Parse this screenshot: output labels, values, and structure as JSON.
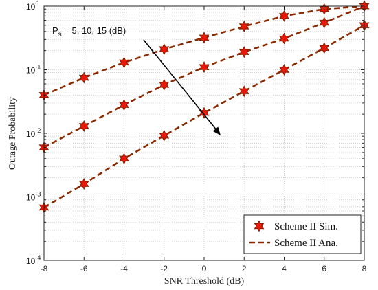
{
  "chart_data": {
    "type": "line",
    "title": "",
    "xlabel": "SNR Threshold (dB)",
    "ylabel": "Outage Probability",
    "xlim": [
      -8,
      8
    ],
    "ylim": [
      0.0001,
      1
    ],
    "yscale": "log",
    "grid": true,
    "legend_position": "bottom-right",
    "x": [
      -8,
      -6,
      -4,
      -2,
      0,
      2,
      4,
      6,
      8
    ],
    "x_ticks": [
      "-8",
      "-6",
      "-4",
      "-2",
      "0",
      "2",
      "4",
      "6",
      "8"
    ],
    "y_ticks": [
      {
        "value": 1,
        "label": "10",
        "exp": "0"
      },
      {
        "value": 0.1,
        "label": "10",
        "exp": "-1"
      },
      {
        "value": 0.01,
        "label": "10",
        "exp": "-2"
      },
      {
        "value": 0.001,
        "label": "10",
        "exp": "-3"
      },
      {
        "value": 0.0001,
        "label": "10",
        "exp": "-4"
      }
    ],
    "legend": [
      {
        "label": "Scheme II Sim.",
        "style": "marker"
      },
      {
        "label": "Scheme II Ana.",
        "style": "dashed"
      }
    ],
    "annotation": {
      "prefix": "P",
      "subscript": "s",
      "text": " = 5, 10, 15 (dB)"
    },
    "curves": [
      {
        "values": [
          0.04,
          0.075,
          0.13,
          0.21,
          0.32,
          0.48,
          0.7,
          0.9,
          1.0
        ]
      },
      {
        "values": [
          0.006,
          0.013,
          0.028,
          0.058,
          0.11,
          0.19,
          0.31,
          0.55,
          1.0
        ]
      },
      {
        "values": [
          0.00068,
          0.0016,
          0.004,
          0.0092,
          0.021,
          0.046,
          0.1,
          0.22,
          0.5
        ]
      }
    ],
    "colors": {
      "line": "#8b2a00",
      "marker_fill": "#e8190a",
      "marker_stroke": "#7a1f00",
      "grid": "#c8c8c8",
      "arrow": "#000000"
    }
  }
}
